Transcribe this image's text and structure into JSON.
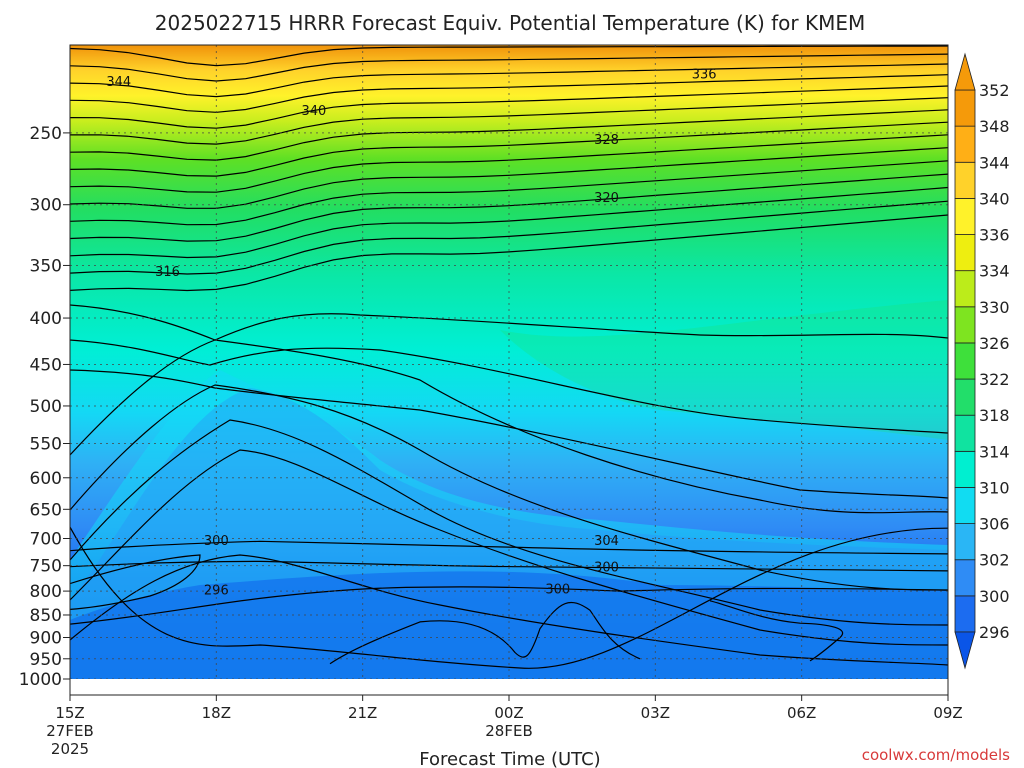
{
  "chart_data": {
    "type": "heatmap",
    "title": "2025022715 HRRR Forecast Equiv. Potential Temperature (K) for KMEM",
    "xlabel": "Forecast Time (UTC)",
    "ylabel": "",
    "x_ticks": [
      {
        "hour": 0,
        "label": "15Z",
        "sub1": "27FEB",
        "sub2": "2025"
      },
      {
        "hour": 3,
        "label": "18Z",
        "sub1": "",
        "sub2": ""
      },
      {
        "hour": 6,
        "label": "21Z",
        "sub1": "",
        "sub2": ""
      },
      {
        "hour": 9,
        "label": "00Z",
        "sub1": "28FEB",
        "sub2": ""
      },
      {
        "hour": 12,
        "label": "03Z",
        "sub1": "",
        "sub2": ""
      },
      {
        "hour": 15,
        "label": "06Z",
        "sub1": "",
        "sub2": ""
      },
      {
        "hour": 18,
        "label": "09Z",
        "sub1": "",
        "sub2": ""
      }
    ],
    "y_ticks": [
      250,
      300,
      350,
      400,
      450,
      500,
      550,
      600,
      650,
      700,
      750,
      800,
      850,
      900,
      950,
      1000
    ],
    "ylim_hPa": [
      1000,
      200
    ],
    "xlim_hours": [
      0,
      18
    ],
    "grid": true,
    "colorbar": {
      "levels": [
        296,
        300,
        302,
        306,
        310,
        314,
        318,
        322,
        326,
        330,
        334,
        336,
        340,
        344,
        348,
        352
      ],
      "colors": [
        "#0a55e8",
        "#1c6cf0",
        "#2f8cf5",
        "#2ab6f5",
        "#11dcf2",
        "#00efd0",
        "#10e3a0",
        "#22de6a",
        "#3ee03b",
        "#7ee420",
        "#bcec1a",
        "#eeee10",
        "#fff22a",
        "#ffd22a",
        "#ffaf16",
        "#f59a0a"
      ]
    },
    "contour_labels": [
      {
        "text": "344",
        "hour": 1.0,
        "p": 219
      },
      {
        "text": "340",
        "hour": 5.0,
        "p": 236
      },
      {
        "text": "336",
        "hour": 13.0,
        "p": 215
      },
      {
        "text": "328",
        "hour": 11.0,
        "p": 254
      },
      {
        "text": "320",
        "hour": 11.0,
        "p": 294
      },
      {
        "text": "316",
        "hour": 2.0,
        "p": 355
      },
      {
        "text": "300",
        "hour": 3.0,
        "p": 703
      },
      {
        "text": "304",
        "hour": 11.0,
        "p": 703
      },
      {
        "text": "300",
        "hour": 11.0,
        "p": 752
      },
      {
        "text": "296",
        "hour": 3.0,
        "p": 797
      },
      {
        "text": "300",
        "hour": 10.0,
        "p": 795
      }
    ],
    "credit": "coolwx.com/models"
  }
}
